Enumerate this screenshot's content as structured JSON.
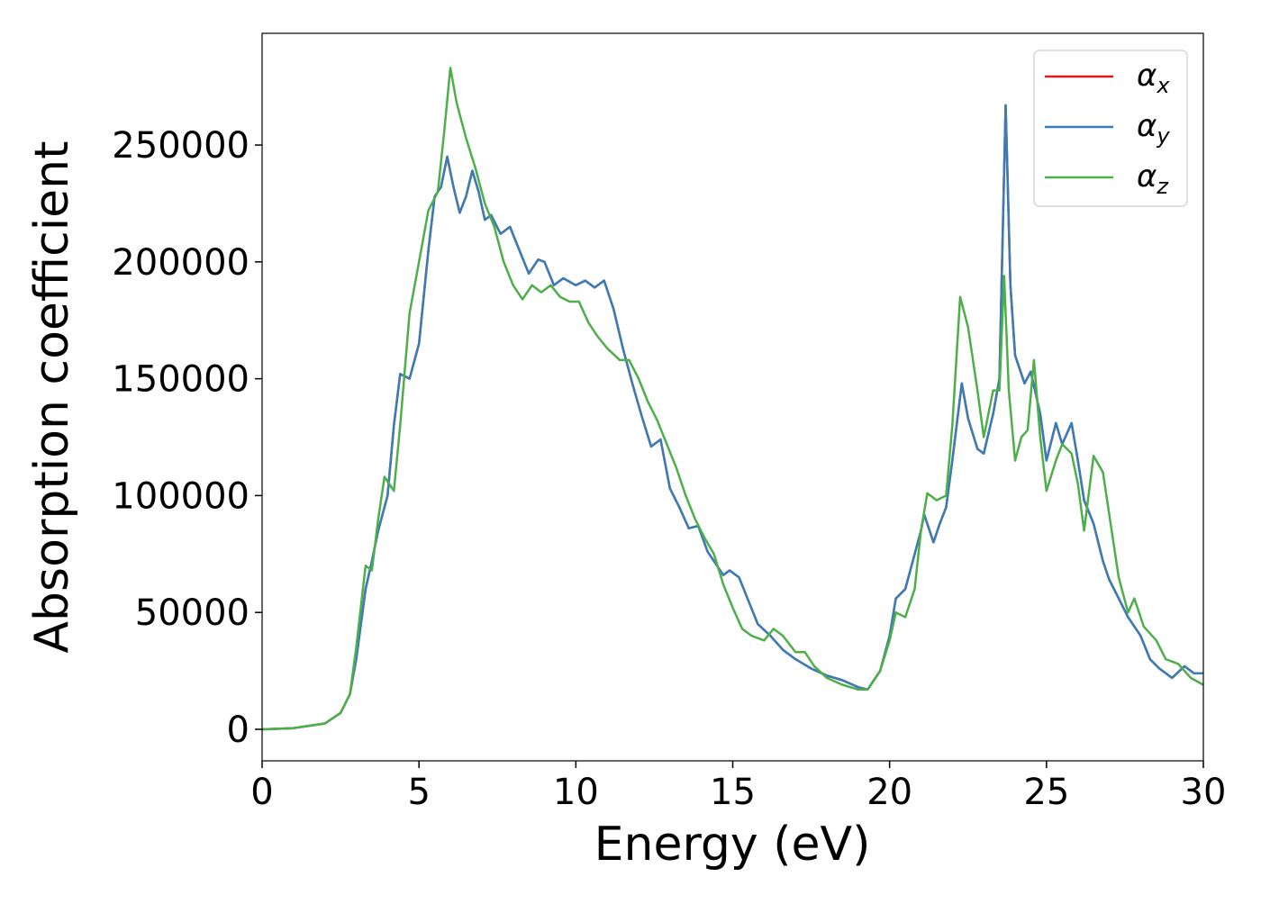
{
  "chart_data": {
    "type": "line",
    "xlabel": "Energy (eV)",
    "ylabel": "Absorption coefficient",
    "xlim": [
      0,
      30
    ],
    "xticks": [
      0,
      5,
      10,
      15,
      20,
      25,
      30
    ],
    "ylim": [
      -13500,
      297800
    ],
    "yticks": [
      0,
      50000,
      100000,
      150000,
      200000,
      250000
    ],
    "grid": false,
    "legend": "upper right",
    "series": [
      {
        "name": "αx",
        "color": "#e41a1c",
        "x": [
          0,
          1,
          2,
          2.5,
          2.8,
          3.0,
          3.3,
          3.5,
          3.7,
          4.0,
          4.2,
          4.4,
          4.7,
          5.0,
          5.3,
          5.5,
          5.7,
          5.9,
          6.1,
          6.3,
          6.5,
          6.7,
          6.9,
          7.1,
          7.3,
          7.6,
          7.9,
          8.2,
          8.5,
          8.8,
          9.0,
          9.3,
          9.6,
          10.0,
          10.3,
          10.6,
          10.9,
          11.2,
          11.5,
          11.8,
          12.1,
          12.4,
          12.7,
          13.0,
          13.3,
          13.6,
          13.9,
          14.2,
          14.5,
          14.7,
          14.9,
          15.2,
          15.5,
          15.8,
          16.2,
          16.6,
          17.0,
          17.5,
          18.0,
          18.5,
          19.0,
          19.3,
          19.7,
          20.0,
          20.2,
          20.5,
          20.8,
          21.0,
          21.1,
          21.4,
          21.6,
          21.8,
          22.0,
          22.3,
          22.5,
          22.8,
          23.0,
          23.3,
          23.5,
          23.7,
          23.85,
          24.0,
          24.3,
          24.5,
          24.8,
          25.0,
          25.3,
          25.5,
          25.8,
          26.0,
          26.2,
          26.5,
          26.8,
          27.0,
          27.3,
          27.6,
          28.0,
          28.3,
          28.6,
          29.0,
          29.4,
          29.7,
          30.0
        ],
        "values": [
          0,
          500,
          2500,
          7000,
          15000,
          30000,
          60000,
          72000,
          85000,
          100000,
          130000,
          152000,
          150000,
          165000,
          205000,
          228000,
          232000,
          245000,
          232000,
          221000,
          228000,
          239000,
          230000,
          218000,
          220000,
          212000,
          215000,
          205000,
          195000,
          201000,
          200000,
          190000,
          193000,
          190000,
          192000,
          189000,
          192000,
          180000,
          163000,
          148000,
          134000,
          121000,
          124000,
          103000,
          95000,
          86000,
          87000,
          76000,
          70000,
          66000,
          68000,
          65000,
          55000,
          45000,
          40000,
          34000,
          30000,
          26000,
          23000,
          21000,
          18000,
          17000,
          25000,
          40000,
          56000,
          60000,
          75000,
          85000,
          92000,
          80000,
          88000,
          95000,
          115000,
          148000,
          133000,
          120000,
          118000,
          135000,
          150000,
          267000,
          190000,
          160000,
          148000,
          153000,
          135000,
          115000,
          131000,
          122000,
          131000,
          115000,
          98000,
          88000,
          72000,
          64000,
          56000,
          48000,
          40000,
          30000,
          26000,
          22000,
          27000,
          24000,
          24000
        ]
      },
      {
        "name": "αy",
        "color": "#377eb8",
        "x": [
          0,
          1,
          2,
          2.5,
          2.8,
          3.0,
          3.3,
          3.5,
          3.7,
          4.0,
          4.2,
          4.4,
          4.7,
          5.0,
          5.3,
          5.5,
          5.7,
          5.9,
          6.1,
          6.3,
          6.5,
          6.7,
          6.9,
          7.1,
          7.3,
          7.6,
          7.9,
          8.2,
          8.5,
          8.8,
          9.0,
          9.3,
          9.6,
          10.0,
          10.3,
          10.6,
          10.9,
          11.2,
          11.5,
          11.8,
          12.1,
          12.4,
          12.7,
          13.0,
          13.3,
          13.6,
          13.9,
          14.2,
          14.5,
          14.7,
          14.9,
          15.2,
          15.5,
          15.8,
          16.2,
          16.6,
          17.0,
          17.5,
          18.0,
          18.5,
          19.0,
          19.3,
          19.7,
          20.0,
          20.2,
          20.5,
          20.8,
          21.0,
          21.1,
          21.4,
          21.6,
          21.8,
          22.0,
          22.3,
          22.5,
          22.8,
          23.0,
          23.3,
          23.5,
          23.7,
          23.85,
          24.0,
          24.3,
          24.5,
          24.8,
          25.0,
          25.3,
          25.5,
          25.8,
          26.0,
          26.2,
          26.5,
          26.8,
          27.0,
          27.3,
          27.6,
          28.0,
          28.3,
          28.6,
          29.0,
          29.4,
          29.7,
          30.0
        ],
        "values": [
          0,
          500,
          2500,
          7000,
          15000,
          30000,
          60000,
          72000,
          85000,
          100000,
          130000,
          152000,
          150000,
          165000,
          205000,
          228000,
          232000,
          245000,
          232000,
          221000,
          228000,
          239000,
          230000,
          218000,
          220000,
          212000,
          215000,
          205000,
          195000,
          201000,
          200000,
          190000,
          193000,
          190000,
          192000,
          189000,
          192000,
          180000,
          163000,
          148000,
          134000,
          121000,
          124000,
          103000,
          95000,
          86000,
          87000,
          76000,
          70000,
          66000,
          68000,
          65000,
          55000,
          45000,
          40000,
          34000,
          30000,
          26000,
          23000,
          21000,
          18000,
          17000,
          25000,
          40000,
          56000,
          60000,
          75000,
          85000,
          92000,
          80000,
          88000,
          95000,
          115000,
          148000,
          133000,
          120000,
          118000,
          135000,
          150000,
          267000,
          190000,
          160000,
          148000,
          153000,
          135000,
          115000,
          131000,
          122000,
          131000,
          115000,
          98000,
          88000,
          72000,
          64000,
          56000,
          48000,
          40000,
          30000,
          26000,
          22000,
          27000,
          24000,
          24000
        ]
      },
      {
        "name": "αz",
        "color": "#4daf4a",
        "x": [
          0,
          1,
          2,
          2.5,
          2.8,
          3.0,
          3.3,
          3.5,
          3.7,
          3.9,
          4.2,
          4.4,
          4.7,
          5.0,
          5.3,
          5.6,
          5.8,
          6.0,
          6.2,
          6.5,
          6.8,
          7.1,
          7.4,
          7.7,
          8.0,
          8.3,
          8.6,
          8.9,
          9.2,
          9.5,
          9.8,
          10.1,
          10.4,
          10.7,
          11.0,
          11.4,
          11.7,
          12.0,
          12.3,
          12.6,
          12.9,
          13.2,
          13.5,
          13.8,
          14.1,
          14.4,
          14.7,
          15.0,
          15.3,
          15.6,
          16.0,
          16.3,
          16.6,
          17.0,
          17.3,
          17.6,
          18.0,
          18.5,
          19.0,
          19.3,
          19.7,
          20.0,
          20.2,
          20.5,
          20.8,
          21.0,
          21.2,
          21.5,
          21.8,
          22.0,
          22.25,
          22.5,
          22.8,
          23.0,
          23.3,
          23.5,
          23.65,
          23.8,
          24.0,
          24.2,
          24.4,
          24.6,
          24.8,
          25.0,
          25.3,
          25.5,
          25.8,
          26.0,
          26.2,
          26.5,
          26.8,
          27.0,
          27.3,
          27.6,
          27.8,
          28.1,
          28.5,
          28.8,
          29.2,
          29.6,
          30.0
        ],
        "values": [
          0,
          500,
          2500,
          7000,
          15000,
          35000,
          70000,
          68000,
          90000,
          108000,
          102000,
          130000,
          178000,
          200000,
          222000,
          230000,
          255000,
          283000,
          268000,
          253000,
          240000,
          225000,
          215000,
          200000,
          190000,
          184000,
          190000,
          187000,
          190000,
          185000,
          183000,
          183000,
          174000,
          168000,
          163000,
          158000,
          158000,
          150000,
          140000,
          132000,
          122000,
          112000,
          100000,
          90000,
          82000,
          75000,
          62000,
          52000,
          43000,
          40000,
          38000,
          43000,
          40000,
          33000,
          33000,
          27000,
          22000,
          19000,
          17000,
          17000,
          25000,
          38000,
          50000,
          48000,
          60000,
          85000,
          101000,
          98000,
          100000,
          130000,
          185000,
          172000,
          145000,
          125000,
          145000,
          145000,
          194000,
          145000,
          115000,
          125000,
          128000,
          158000,
          125000,
          102000,
          115000,
          122000,
          118000,
          105000,
          85000,
          117000,
          110000,
          92000,
          65000,
          50000,
          56000,
          44000,
          38000,
          30000,
          28000,
          22000,
          19000
        ]
      }
    ]
  }
}
